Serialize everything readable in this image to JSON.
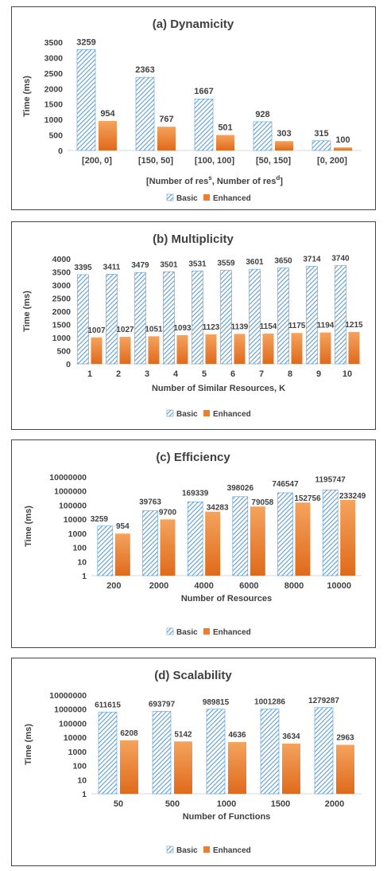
{
  "colors": {
    "basic": "#5b9bd5",
    "enhanced": "#ed7d31",
    "text": "#404040",
    "axis": "#d9d9d9"
  },
  "legend": {
    "basic": "Basic",
    "enhanced": "Enhanced"
  },
  "chart_data": [
    {
      "type": "bar",
      "title": "(a) Dynamicity",
      "xlabel": "[Number of res^s, Number of res^d]",
      "xlabel_parts": {
        "open": "[Number of res",
        "sup1": "s",
        "mid": ", Number of res",
        "sup2": "d",
        "close": "]"
      },
      "ylabel": "Time (ms)",
      "scale": "linear",
      "ylim": [
        0,
        3500
      ],
      "yticks": [
        "0",
        "500",
        "1000",
        "1500",
        "2000",
        "2500",
        "3000",
        "3500"
      ],
      "categories": [
        "[200, 0]",
        "[150, 50]",
        "[100, 100]",
        "[50, 150]",
        "[0, 200]"
      ],
      "series": [
        {
          "name": "Basic",
          "values": [
            3259,
            2363,
            1667,
            928,
            315
          ]
        },
        {
          "name": "Enhanced",
          "values": [
            954,
            767,
            501,
            303,
            100
          ]
        }
      ],
      "legend_position": "bottom"
    },
    {
      "type": "bar",
      "title": "(b) Multiplicity",
      "xlabel": "Number of Similar Resources, K",
      "ylabel": "Time (ms)",
      "scale": "linear",
      "ylim": [
        0,
        4000
      ],
      "yticks": [
        "0",
        "500",
        "1000",
        "1500",
        "2000",
        "2500",
        "3000",
        "3500",
        "4000"
      ],
      "categories": [
        "1",
        "2",
        "3",
        "4",
        "5",
        "6",
        "7",
        "8",
        "9",
        "10"
      ],
      "series": [
        {
          "name": "Basic",
          "values": [
            3395,
            3411,
            3479,
            3501,
            3531,
            3559,
            3601,
            3650,
            3714,
            3740
          ]
        },
        {
          "name": "Enhanced",
          "values": [
            1007,
            1027,
            1051,
            1093,
            1123,
            1139,
            1154,
            1175,
            1194,
            1215
          ]
        }
      ],
      "legend_position": "bottom"
    },
    {
      "type": "bar",
      "title": "(c) Efficiency",
      "xlabel": "Number of Resources",
      "ylabel": "Time (ms)",
      "scale": "log",
      "ylim": [
        1,
        10000000
      ],
      "yticks": [
        "1",
        "10",
        "100",
        "1000",
        "10000",
        "100000",
        "1000000",
        "10000000"
      ],
      "categories": [
        "200",
        "2000",
        "4000",
        "6000",
        "8000",
        "10000"
      ],
      "series": [
        {
          "name": "Basic",
          "values": [
            3259,
            39763,
            169339,
            398026,
            746547,
            1195747
          ]
        },
        {
          "name": "Enhanced",
          "values": [
            954,
            9700,
            34283,
            79058,
            152756,
            233249
          ]
        }
      ],
      "legend_position": "bottom"
    },
    {
      "type": "bar",
      "title": "(d) Scalability",
      "xlabel": "Number of Functions",
      "ylabel": "Time (ms)",
      "scale": "log",
      "ylim": [
        1,
        10000000
      ],
      "yticks": [
        "1",
        "10",
        "100",
        "1000",
        "10000",
        "100000",
        "1000000",
        "10000000"
      ],
      "categories": [
        "50",
        "500",
        "1000",
        "1500",
        "2000"
      ],
      "series": [
        {
          "name": "Basic",
          "values": [
            611615,
            693797,
            989815,
            1001286,
            1279287
          ]
        },
        {
          "name": "Enhanced",
          "values": [
            6208,
            5142,
            4636,
            3634,
            2963
          ]
        }
      ],
      "legend_position": "bottom"
    }
  ]
}
